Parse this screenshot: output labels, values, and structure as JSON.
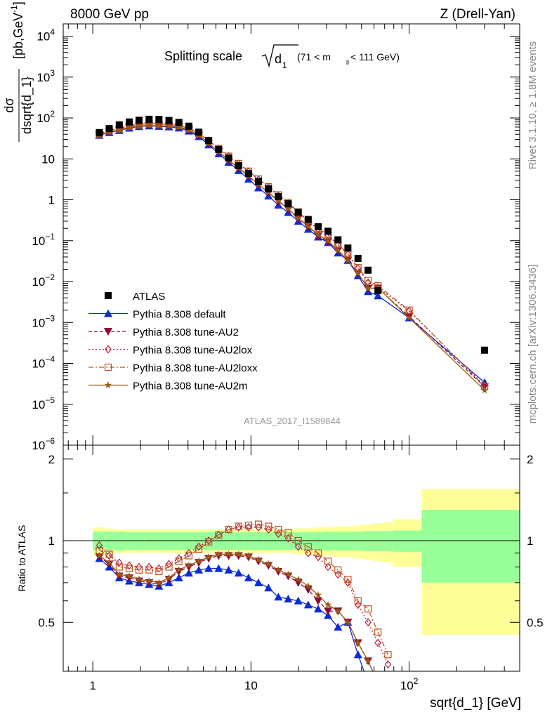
{
  "header": {
    "left": "8000 GeV pp",
    "right": "Z (Drell-Yan)"
  },
  "side_labels": {
    "rivet": "Rivet 3.1.10, ≥ 1.8M events",
    "mcplots": "mcplots.cern.ch [arXiv:1306.3436]"
  },
  "main_title": {
    "prefix": "Splitting scale",
    "symbol": "d",
    "subscript": "1",
    "range_left": "(71 < m",
    "range_sub": "ll",
    "range_right": " < 111 GeV)"
  },
  "analysis_id": "ATLAS_2017_I1589844",
  "y_label_top": {
    "numerator": "dσ",
    "denominator": "dsqrt{d_1}",
    "units": "[pb,GeV",
    "units_sup": "-1",
    "units_close": "]"
  },
  "y_label_ratio": "Ratio to ATLAS",
  "x_label": "sqrt{d_1} [GeV]",
  "x_ticks": [
    {
      "value": 1,
      "label": "1"
    },
    {
      "value": 10,
      "label": "10"
    },
    {
      "value": 100,
      "label": "10",
      "sup": "2"
    }
  ],
  "y_ticks_top": [
    {
      "exp": 4,
      "label": "10",
      "sup": "4"
    },
    {
      "exp": 3,
      "label": "10",
      "sup": "3"
    },
    {
      "exp": 2,
      "label": "10",
      "sup": "2"
    },
    {
      "exp": 1,
      "label": "10",
      "sup": ""
    },
    {
      "exp": 0,
      "label": "1",
      "sup": ""
    },
    {
      "exp": -1,
      "label": "10",
      "sup": "−1"
    },
    {
      "exp": -2,
      "label": "10",
      "sup": "−2"
    },
    {
      "exp": -3,
      "label": "10",
      "sup": "−3"
    },
    {
      "exp": -4,
      "label": "10",
      "sup": "−4"
    },
    {
      "exp": -5,
      "label": "10",
      "sup": "−5"
    },
    {
      "exp": -6,
      "label": "10",
      "sup": "−6"
    }
  ],
  "y_ticks_ratio": [
    {
      "value": 2,
      "label": "2"
    },
    {
      "value": 1,
      "label": "1"
    },
    {
      "value": 0.5,
      "label": "0.5"
    }
  ],
  "colors": {
    "data": "#000000",
    "default": "#0a2bd6",
    "au2": "#8b0a3a",
    "au2lox": "#b8203f",
    "au2loxx": "#c0501f",
    "au2m": "#9a5a10",
    "band_inner": "#99ff99",
    "band_outer": "#ffff99"
  },
  "chart_data": {
    "type": "scatter",
    "x_scale": "log",
    "y_scale": "log",
    "xlim": [
      0.65,
      500
    ],
    "ylim_top": [
      1e-06,
      20000
    ],
    "ylim_ratio": [
      0.33,
      2.25
    ],
    "x": [
      1.1,
      1.27,
      1.47,
      1.7,
      1.96,
      2.27,
      2.62,
      3.03,
      3.5,
      4.05,
      4.68,
      5.4,
      6.25,
      7.22,
      8.35,
      9.65,
      11.15,
      12.9,
      14.9,
      17.2,
      19.9,
      23.0,
      26.6,
      30.7,
      35.5,
      41.0,
      47.5,
      55.0,
      63.5,
      73.5,
      100.0,
      300.0
    ],
    "x_edges": [
      1.0,
      1.18,
      1.36,
      1.58,
      1.82,
      2.11,
      2.44,
      2.82,
      3.26,
      3.77,
      4.35,
      5.03,
      5.81,
      6.72,
      7.77,
      8.98,
      10.4,
      12.0,
      13.9,
      16.0,
      18.5,
      21.4,
      24.8,
      28.6,
      33.1,
      38.2,
      44.2,
      51.1,
      59.0,
      68.2,
      78.8,
      120.0,
      500.0
    ],
    "legend": {
      "position": "bottom-left",
      "entries": [
        {
          "key": "atlas",
          "label": "ATLAS"
        },
        {
          "key": "default",
          "label": "Pythia 8.308 default"
        },
        {
          "key": "au2",
          "label": "Pythia 8.308 tune-AU2"
        },
        {
          "key": "au2lox",
          "label": "Pythia 8.308 tune-AU2lox"
        },
        {
          "key": "au2loxx",
          "label": "Pythia 8.308 tune-AU2loxx"
        },
        {
          "key": "au2m",
          "label": "Pythia 8.308 tune-AU2m"
        }
      ]
    },
    "atlas": {
      "name": "ATLAS",
      "values": [
        44,
        55,
        68,
        80,
        88,
        93,
        92,
        87,
        78,
        63,
        45,
        28,
        17,
        10.5,
        6.8,
        4.4,
        2.8,
        1.85,
        1.2,
        0.8,
        0.5,
        0.33,
        0.22,
        0.17,
        0.105,
        0.066,
        0.037,
        0.019,
        0.006,
        0.0,
        0.0,
        0.00021
      ],
      "band_inner": [
        0.08,
        0.08,
        0.08,
        0.075,
        0.075,
        0.075,
        0.075,
        0.075,
        0.075,
        0.075,
        0.075,
        0.075,
        0.075,
        0.075,
        0.075,
        0.075,
        0.075,
        0.075,
        0.075,
        0.075,
        0.075,
        0.075,
        0.075,
        0.08,
        0.08,
        0.08,
        0.08,
        0.085,
        0.085,
        0.085,
        0.09,
        0.3
      ],
      "band_outer": [
        0.12,
        0.11,
        0.1,
        0.1,
        0.1,
        0.1,
        0.1,
        0.1,
        0.1,
        0.1,
        0.1,
        0.1,
        0.1,
        0.1,
        0.1,
        0.1,
        0.1,
        0.1,
        0.1,
        0.1,
        0.11,
        0.11,
        0.12,
        0.12,
        0.13,
        0.13,
        0.14,
        0.15,
        0.16,
        0.17,
        0.2,
        0.55
      ]
    },
    "series": [
      {
        "key": "default",
        "name": "Pythia 8.308 default",
        "ratio": [
          0.86,
          0.8,
          0.73,
          0.71,
          0.7,
          0.69,
          0.68,
          0.7,
          0.73,
          0.76,
          0.78,
          0.79,
          0.79,
          0.78,
          0.76,
          0.73,
          0.7,
          0.67,
          0.62,
          0.61,
          0.6,
          0.58,
          0.56,
          0.53,
          0.48,
          0.5,
          0.38,
          0.3,
          0.25,
          0.2,
          0.22,
          0.16
        ],
        "values": [
          37.8,
          44,
          49.6,
          56.8,
          61.6,
          64.2,
          62.6,
          60.9,
          56.9,
          47.9,
          35.1,
          22.1,
          13.4,
          8.2,
          5.2,
          3.2,
          1.96,
          1.24,
          0.74,
          0.49,
          0.3,
          0.19,
          0.123,
          0.09,
          0.05,
          0.033,
          0.014,
          0.0057,
          0.0045,
          0.0,
          0.0013,
          3.4e-05
        ]
      },
      {
        "key": "au2",
        "name": "Pythia 8.308 tune-AU2",
        "ratio": [
          0.87,
          0.82,
          0.74,
          0.73,
          0.71,
          0.7,
          0.69,
          0.72,
          0.77,
          0.8,
          0.83,
          0.86,
          0.88,
          0.88,
          0.88,
          0.87,
          0.84,
          0.81,
          0.77,
          0.74,
          0.7,
          0.66,
          0.6,
          0.55,
          0.55,
          0.5,
          0.42,
          0.36,
          0.3,
          0.25,
          0.22,
          0.13
        ],
        "values": [
          38.3,
          45.1,
          50.3,
          58.4,
          62.5,
          65.1,
          63.5,
          62.6,
          60.1,
          50.4,
          37.4,
          24.1,
          15.0,
          9.2,
          6.0,
          3.8,
          2.35,
          1.5,
          0.92,
          0.59,
          0.35,
          0.22,
          0.13,
          0.094,
          0.058,
          0.033,
          0.016,
          0.0068,
          0.0069,
          0.0,
          0.0014,
          2.7e-05
        ]
      },
      {
        "key": "au2lox",
        "name": "Pythia 8.308 tune-AU2lox",
        "ratio": [
          0.96,
          0.88,
          0.83,
          0.81,
          0.8,
          0.8,
          0.79,
          0.82,
          0.86,
          0.9,
          0.95,
          1.0,
          1.05,
          1.1,
          1.12,
          1.12,
          1.12,
          1.1,
          1.06,
          1.02,
          0.95,
          0.9,
          0.87,
          0.8,
          0.75,
          0.7,
          0.58,
          0.5,
          0.42,
          0.35,
          0.3,
          0.2
        ],
        "values": [
          42.2,
          48.4,
          56.4,
          64.8,
          70.4,
          74.4,
          72.7,
          71.3,
          67.1,
          56.7,
          42.8,
          28.0,
          17.9,
          11.6,
          7.6,
          4.9,
          3.14,
          2.04,
          1.27,
          0.82,
          0.48,
          0.3,
          0.19,
          0.136,
          0.079,
          0.046,
          0.021,
          0.0095,
          0.0072,
          0.0,
          0.0019,
          2.9e-05
        ]
      },
      {
        "key": "au2loxx",
        "name": "Pythia 8.308 tune-AU2loxx",
        "ratio": [
          0.92,
          0.89,
          0.8,
          0.79,
          0.78,
          0.78,
          0.77,
          0.8,
          0.84,
          0.88,
          0.93,
          0.99,
          1.05,
          1.1,
          1.13,
          1.14,
          1.15,
          1.13,
          1.1,
          1.07,
          1.0,
          0.95,
          0.9,
          0.84,
          0.78,
          0.72,
          0.6,
          0.56,
          0.46,
          0.38,
          0.32,
          0.22
        ],
        "values": [
          40.5,
          49,
          54.4,
          63.2,
          68.6,
          72.5,
          70.8,
          69.6,
          65.5,
          55.4,
          41.9,
          27.7,
          17.9,
          11.6,
          7.7,
          5.0,
          3.22,
          2.09,
          1.32,
          0.86,
          0.5,
          0.31,
          0.2,
          0.143,
          0.082,
          0.048,
          0.022,
          0.0106,
          0.0079,
          0.0,
          0.002,
          2.7e-05
        ]
      },
      {
        "key": "au2m",
        "name": "Pythia 8.308 tune-AU2m",
        "ratio": [
          0.88,
          0.83,
          0.75,
          0.74,
          0.72,
          0.71,
          0.7,
          0.73,
          0.78,
          0.81,
          0.84,
          0.87,
          0.89,
          0.89,
          0.89,
          0.88,
          0.85,
          0.82,
          0.78,
          0.75,
          0.72,
          0.68,
          0.63,
          0.58,
          0.55,
          0.5,
          0.42,
          0.36,
          0.3,
          0.25,
          0.22,
          0.14
        ],
        "values": [
          38.7,
          45.7,
          51,
          59.2,
          63.4,
          66,
          64.4,
          63.5,
          60.8,
          51.0,
          37.8,
          24.4,
          15.1,
          9.3,
          6.05,
          3.87,
          2.38,
          1.52,
          0.94,
          0.6,
          0.36,
          0.224,
          0.139,
          0.099,
          0.058,
          0.033,
          0.016,
          0.0068,
          0.007,
          0.0,
          0.0013,
          2.2e-05
        ]
      }
    ]
  }
}
